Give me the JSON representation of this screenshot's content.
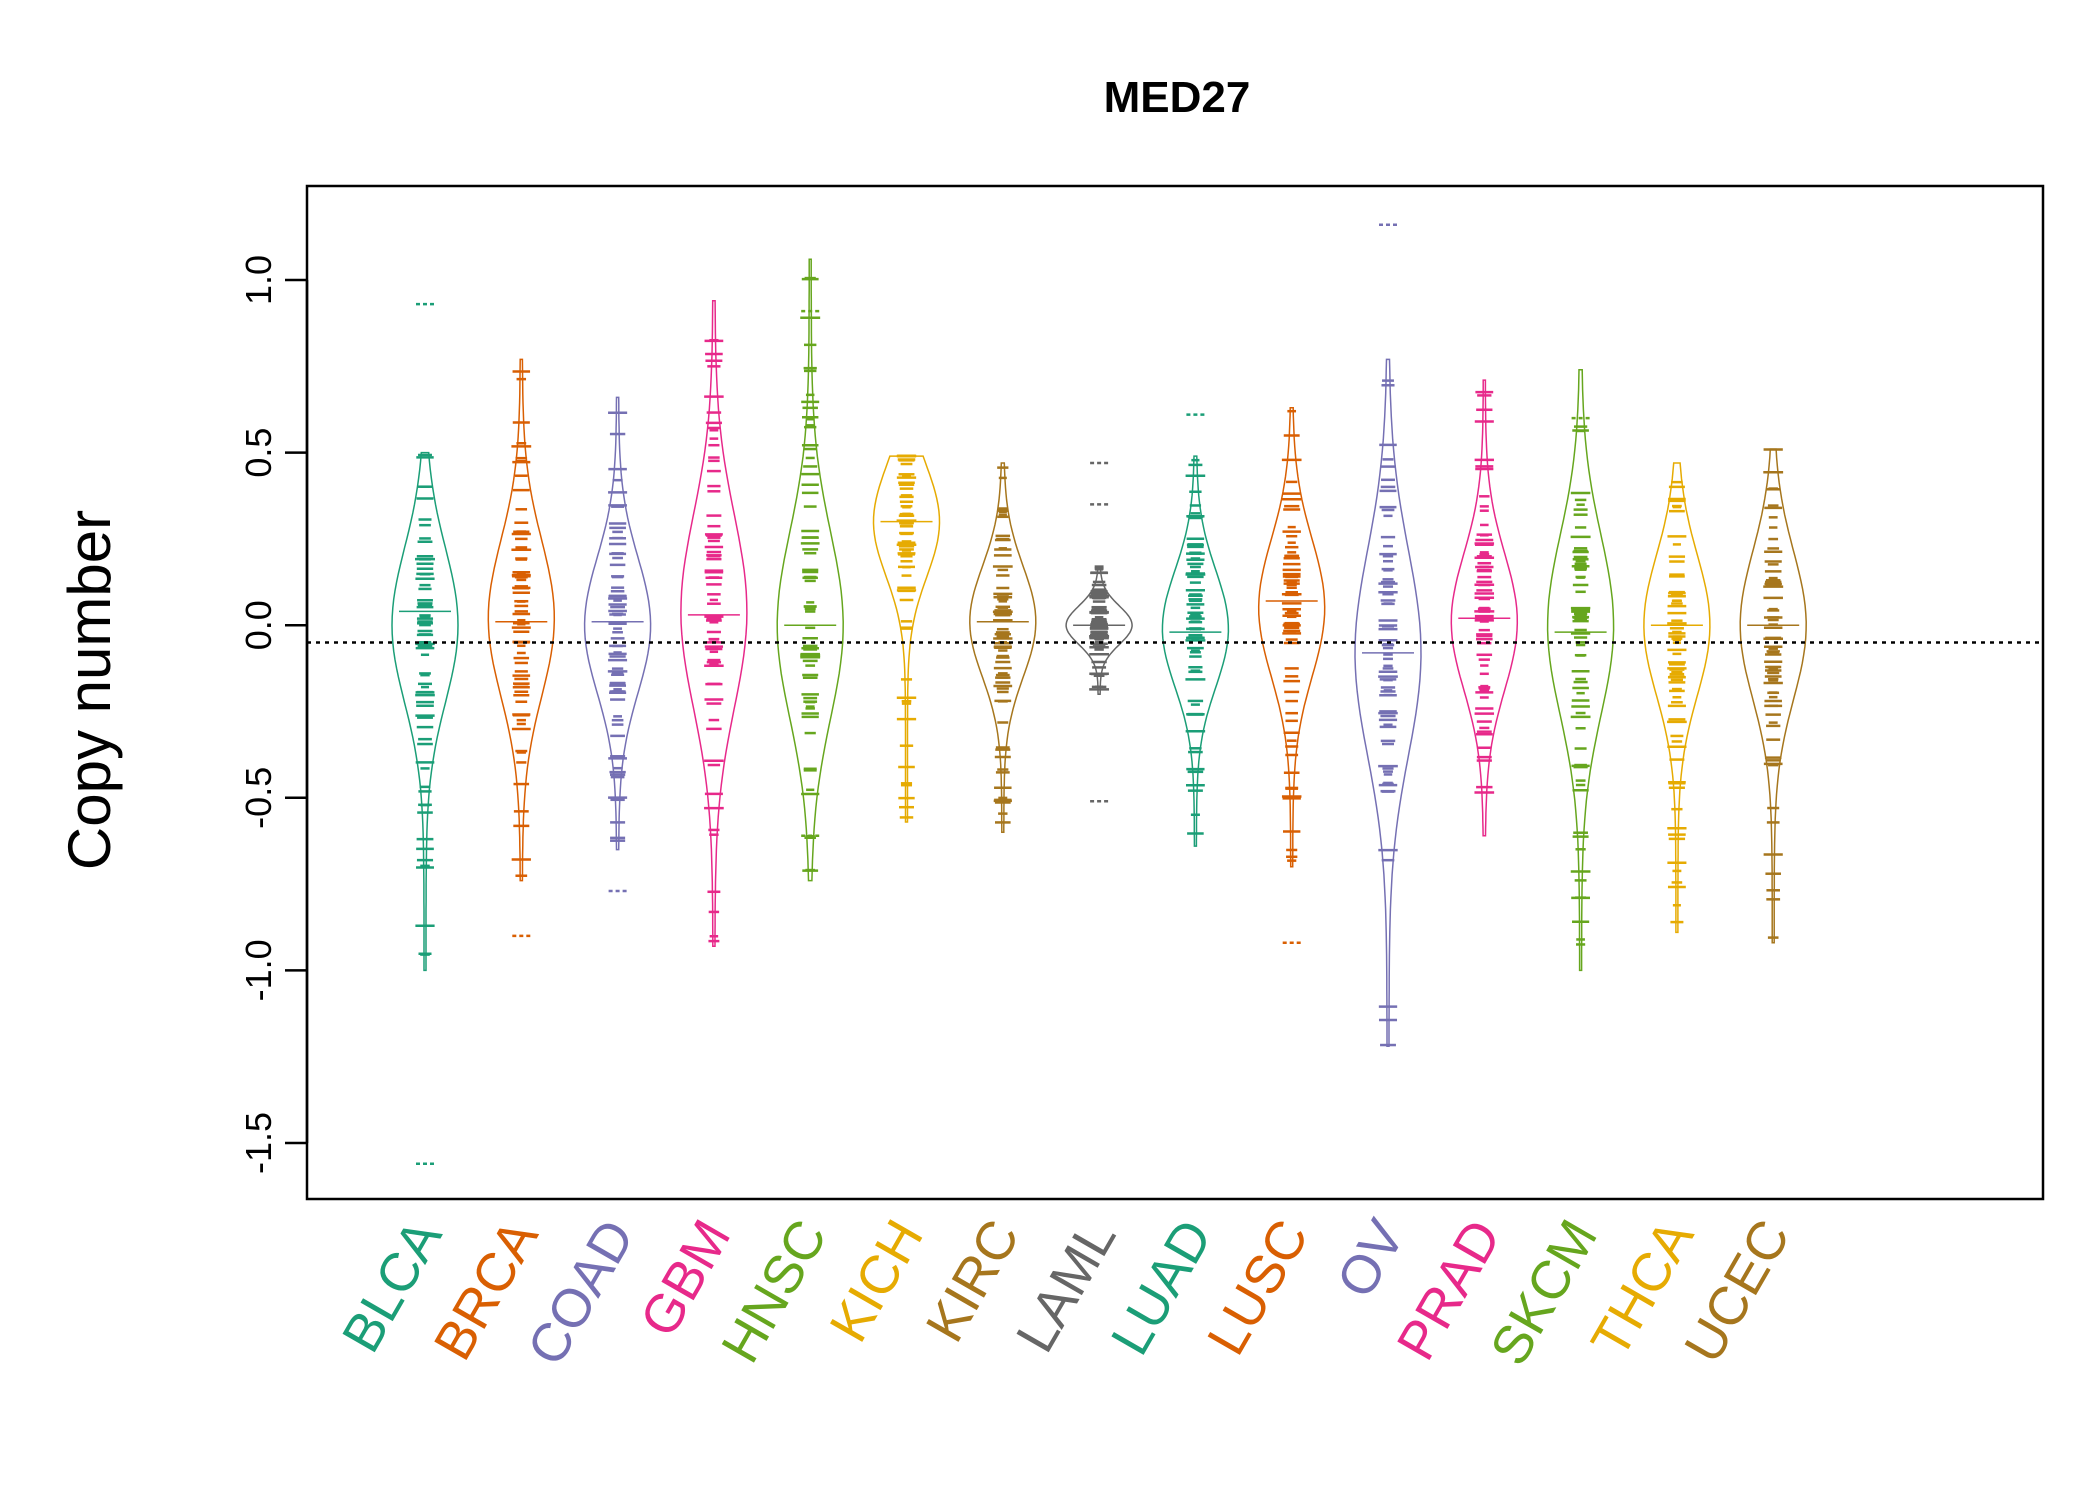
{
  "chart_data": {
    "type": "beanplot",
    "title": "MED27",
    "ylabel": "Copy number",
    "xlabel": "",
    "ylim": [
      -1.66,
      1.27
    ],
    "yticks": [
      -1.5,
      -1.0,
      -0.5,
      0.0,
      0.5,
      1.0
    ],
    "ytick_labels": [
      "-1.5",
      "-1.0",
      "-0.5",
      "0.0",
      "0.5",
      "1.0"
    ],
    "reference_line": -0.05,
    "grid": false,
    "legend": "none",
    "categories": [
      "BLCA",
      "BRCA",
      "COAD",
      "GBM",
      "HNSC",
      "KICH",
      "KIRC",
      "LAML",
      "LUAD",
      "LUSC",
      "OV",
      "PRAD",
      "SKCM",
      "THCA",
      "UCEC"
    ],
    "colors": [
      "#1b9e77",
      "#d95f02",
      "#7570b3",
      "#e7298a",
      "#66a61e",
      "#e6ab02",
      "#a6761d",
      "#666666",
      "#1b9e77",
      "#d95f02",
      "#7570b3",
      "#e7298a",
      "#66a61e",
      "#e6ab02",
      "#a6761d"
    ],
    "series": [
      {
        "category": "BLCA",
        "min": -1.0,
        "max": 0.5,
        "peak": 0.0,
        "outliers": [
          0.93,
          -1.56
        ],
        "median": 0.04
      },
      {
        "category": "BRCA",
        "min": -0.74,
        "max": 0.77,
        "peak": 0.02,
        "outliers": [
          -0.9
        ],
        "median": 0.01
      },
      {
        "category": "COAD",
        "min": -0.65,
        "max": 0.66,
        "peak": 0.0,
        "outliers": [
          -0.77
        ],
        "median": 0.01
      },
      {
        "category": "GBM",
        "min": -0.93,
        "max": 0.94,
        "peak": 0.04,
        "outliers": [],
        "median": 0.03
      },
      {
        "category": "HNSC",
        "min": -0.74,
        "max": 1.06,
        "peak": 0.0,
        "outliers": [
          0.91,
          -0.61
        ],
        "median": 0.0
      },
      {
        "category": "KICH",
        "min": -0.57,
        "max": 0.49,
        "peak": 0.3,
        "outliers": [],
        "median": 0.3
      },
      {
        "category": "KIRC",
        "min": -0.6,
        "max": 0.47,
        "peak": 0.01,
        "outliers": [],
        "median": 0.01
      },
      {
        "category": "LAML",
        "min": -0.2,
        "max": 0.17,
        "peak": 0.0,
        "outliers": [
          0.47,
          0.35,
          -0.51
        ],
        "median": 0.0
      },
      {
        "category": "LUAD",
        "min": -0.64,
        "max": 0.49,
        "peak": -0.01,
        "outliers": [
          0.61
        ],
        "median": -0.02
      },
      {
        "category": "LUSC",
        "min": -0.7,
        "max": 0.63,
        "peak": 0.05,
        "outliers": [
          -0.92
        ],
        "median": 0.07
      },
      {
        "category": "OV",
        "min": -1.22,
        "max": 0.77,
        "peak": -0.08,
        "outliers": [
          1.16
        ],
        "median": -0.08
      },
      {
        "category": "PRAD",
        "min": -0.61,
        "max": 0.71,
        "peak": 0.01,
        "outliers": [],
        "median": 0.02
      },
      {
        "category": "SKCM",
        "min": -1.0,
        "max": 0.74,
        "peak": 0.0,
        "outliers": [
          0.6
        ],
        "median": -0.02
      },
      {
        "category": "THCA",
        "min": -0.89,
        "max": 0.47,
        "peak": 0.0,
        "outliers": [],
        "median": 0.0
      },
      {
        "category": "UCEC",
        "min": -0.92,
        "max": 0.51,
        "peak": 0.0,
        "outliers": [],
        "median": 0.0
      }
    ]
  }
}
